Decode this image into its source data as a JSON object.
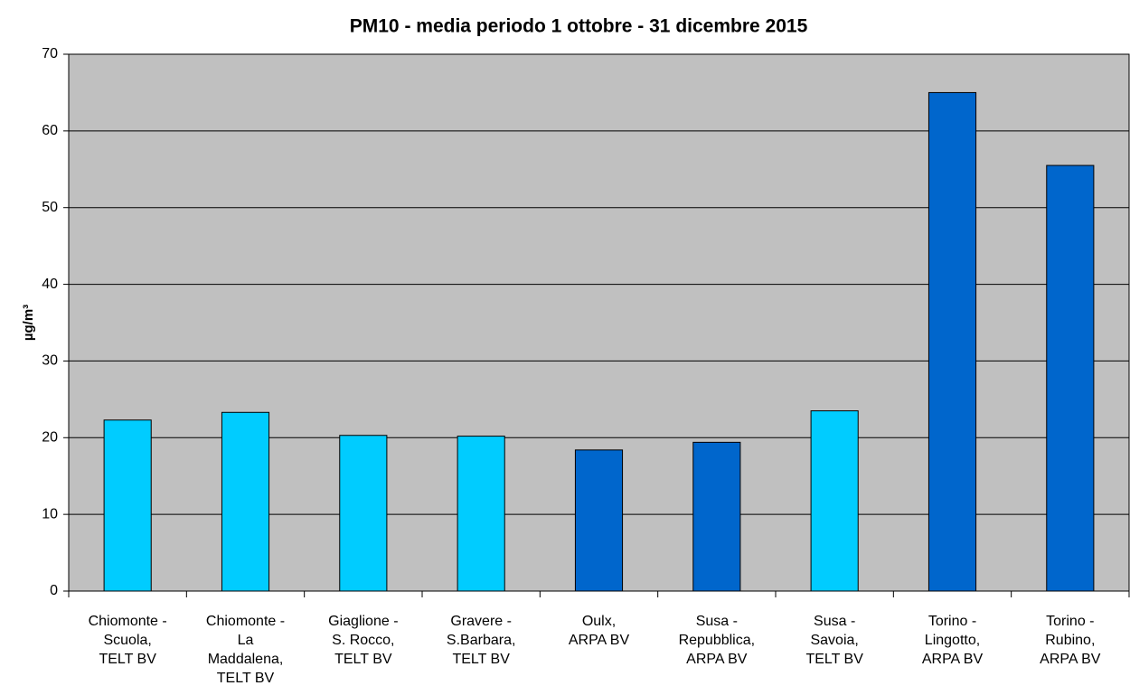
{
  "chart_data": {
    "type": "bar",
    "title": "PM10 - media periodo 1 ottobre - 31 dicembre 2015",
    "y_label": "µg/m³",
    "categories": [
      [
        "Chiomonte -",
        "Scuola,",
        "TELT BV"
      ],
      [
        "Chiomonte -",
        "La",
        "Maddalena,",
        "TELT BV"
      ],
      [
        "Giaglione -",
        "S. Rocco,",
        "TELT BV"
      ],
      [
        "Gravere -",
        "S.Barbara,",
        "TELT BV"
      ],
      [
        "Oulx,",
        "ARPA BV"
      ],
      [
        "Susa -",
        "Repubblica,",
        "ARPA BV"
      ],
      [
        "Susa -",
        "Savoia,",
        "TELT BV"
      ],
      [
        "Torino -",
        "Lingotto,",
        "ARPA BV"
      ],
      [
        "Torino -",
        "Rubino,",
        "ARPA BV"
      ]
    ],
    "values": [
      22.3,
      23.3,
      20.3,
      20.2,
      18.4,
      19.4,
      23.5,
      65.0,
      55.5
    ],
    "colors": [
      "#00ccff",
      "#00ccff",
      "#00ccff",
      "#00ccff",
      "#0066cc",
      "#0066cc",
      "#00ccff",
      "#0066cc",
      "#0066cc"
    ],
    "ylim": [
      0,
      70
    ],
    "yticks": [
      0,
      10,
      20,
      30,
      40,
      50,
      60,
      70
    ],
    "grid": true,
    "plot_background": "#c0c0c0"
  }
}
